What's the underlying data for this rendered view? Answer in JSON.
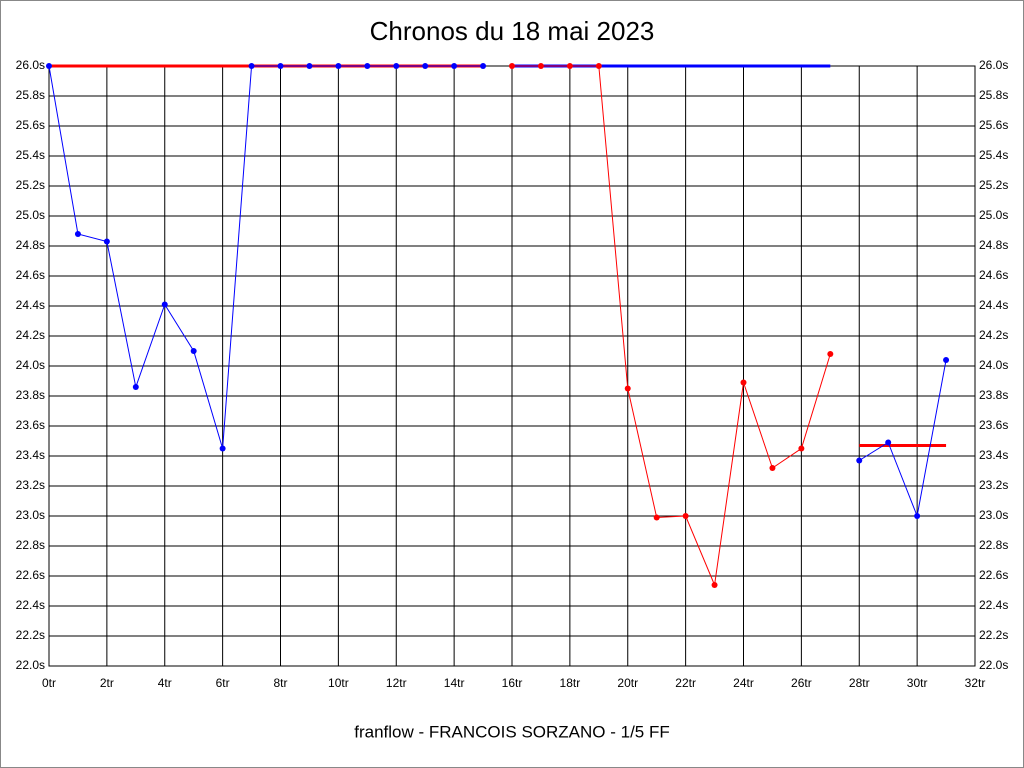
{
  "chart_data": {
    "type": "line",
    "title": "Chronos du 18 mai 2023",
    "footer": "franflow - FRANCOIS SORZANO - 1/5 FF",
    "x": [
      0,
      1,
      2,
      3,
      4,
      5,
      6,
      7,
      8,
      9,
      10,
      11,
      12,
      13,
      14,
      15,
      16,
      17,
      18,
      19,
      20,
      21,
      22,
      23,
      24,
      25,
      26,
      27,
      28,
      29,
      30,
      31
    ],
    "series": [
      {
        "color": "#ff0000",
        "markers": false,
        "width": 3,
        "values": [
          26.0,
          26.0,
          26.0,
          26.0,
          26.0,
          26.0,
          26.0,
          26.0,
          26.0,
          26.0,
          26.0,
          26.0,
          26.0,
          26.0,
          26.0,
          26.0,
          null,
          null,
          null,
          null,
          null,
          null,
          null,
          null,
          null,
          null,
          null,
          null,
          23.47,
          23.47,
          23.47,
          23.47
        ]
      },
      {
        "color": "#0000ff",
        "markers": false,
        "width": 3,
        "values": [
          null,
          null,
          null,
          null,
          null,
          null,
          null,
          null,
          null,
          null,
          null,
          null,
          null,
          null,
          null,
          null,
          26.0,
          26.0,
          26.0,
          26.0,
          26.0,
          26.0,
          26.0,
          26.0,
          26.0,
          26.0,
          26.0,
          26.0,
          null,
          null,
          null,
          null
        ]
      },
      {
        "color": "#0000ff",
        "markers": true,
        "width": 1,
        "values": [
          26.0,
          24.88,
          24.83,
          23.86,
          24.41,
          24.1,
          23.45,
          26.0,
          26.0,
          26.0,
          26.0,
          26.0,
          26.0,
          26.0,
          26.0,
          26.0,
          null,
          null,
          null,
          null,
          null,
          null,
          null,
          null,
          null,
          null,
          null,
          null,
          23.37,
          23.49,
          23.0,
          24.04
        ]
      },
      {
        "color": "#ff0000",
        "markers": true,
        "width": 1,
        "values": [
          null,
          null,
          null,
          null,
          null,
          null,
          null,
          null,
          null,
          null,
          null,
          null,
          null,
          null,
          null,
          null,
          26.0,
          26.0,
          26.0,
          26.0,
          23.85,
          22.99,
          23.0,
          22.54,
          23.89,
          23.32,
          23.45,
          24.08,
          null,
          null,
          null,
          null
        ]
      }
    ],
    "xlim": [
      0,
      32
    ],
    "xticks": [
      {
        "value": 0,
        "label": "0tr"
      },
      {
        "value": 2,
        "label": "2tr"
      },
      {
        "value": 4,
        "label": "4tr"
      },
      {
        "value": 6,
        "label": "6tr"
      },
      {
        "value": 8,
        "label": "8tr"
      },
      {
        "value": 10,
        "label": "10tr"
      },
      {
        "value": 12,
        "label": "12tr"
      },
      {
        "value": 14,
        "label": "14tr"
      },
      {
        "value": 16,
        "label": "16tr"
      },
      {
        "value": 18,
        "label": "18tr"
      },
      {
        "value": 20,
        "label": "20tr"
      },
      {
        "value": 22,
        "label": "22tr"
      },
      {
        "value": 24,
        "label": "24tr"
      },
      {
        "value": 26,
        "label": "26tr"
      },
      {
        "value": 28,
        "label": "28tr"
      },
      {
        "value": 30,
        "label": "30tr"
      },
      {
        "value": 32,
        "label": "32tr"
      }
    ],
    "ylim": [
      22.0,
      26.0
    ],
    "yticks": [
      {
        "value": 22.0,
        "label": "22.0s"
      },
      {
        "value": 22.2,
        "label": "22.2s"
      },
      {
        "value": 22.4,
        "label": "22.4s"
      },
      {
        "value": 22.6,
        "label": "22.6s"
      },
      {
        "value": 22.8,
        "label": "22.8s"
      },
      {
        "value": 23.0,
        "label": "23.0s"
      },
      {
        "value": 23.2,
        "label": "23.2s"
      },
      {
        "value": 23.4,
        "label": "23.4s"
      },
      {
        "value": 23.6,
        "label": "23.6s"
      },
      {
        "value": 23.8,
        "label": "23.8s"
      },
      {
        "value": 24.0,
        "label": "24.0s"
      },
      {
        "value": 24.2,
        "label": "24.2s"
      },
      {
        "value": 24.4,
        "label": "24.4s"
      },
      {
        "value": 24.6,
        "label": "24.6s"
      },
      {
        "value": 24.8,
        "label": "24.8s"
      },
      {
        "value": 25.0,
        "label": "25.0s"
      },
      {
        "value": 25.2,
        "label": "25.2s"
      },
      {
        "value": 25.4,
        "label": "25.4s"
      },
      {
        "value": 25.6,
        "label": "25.6s"
      },
      {
        "value": 25.8,
        "label": "25.8s"
      },
      {
        "value": 26.0,
        "label": "26.0s"
      }
    ],
    "grid": true
  }
}
